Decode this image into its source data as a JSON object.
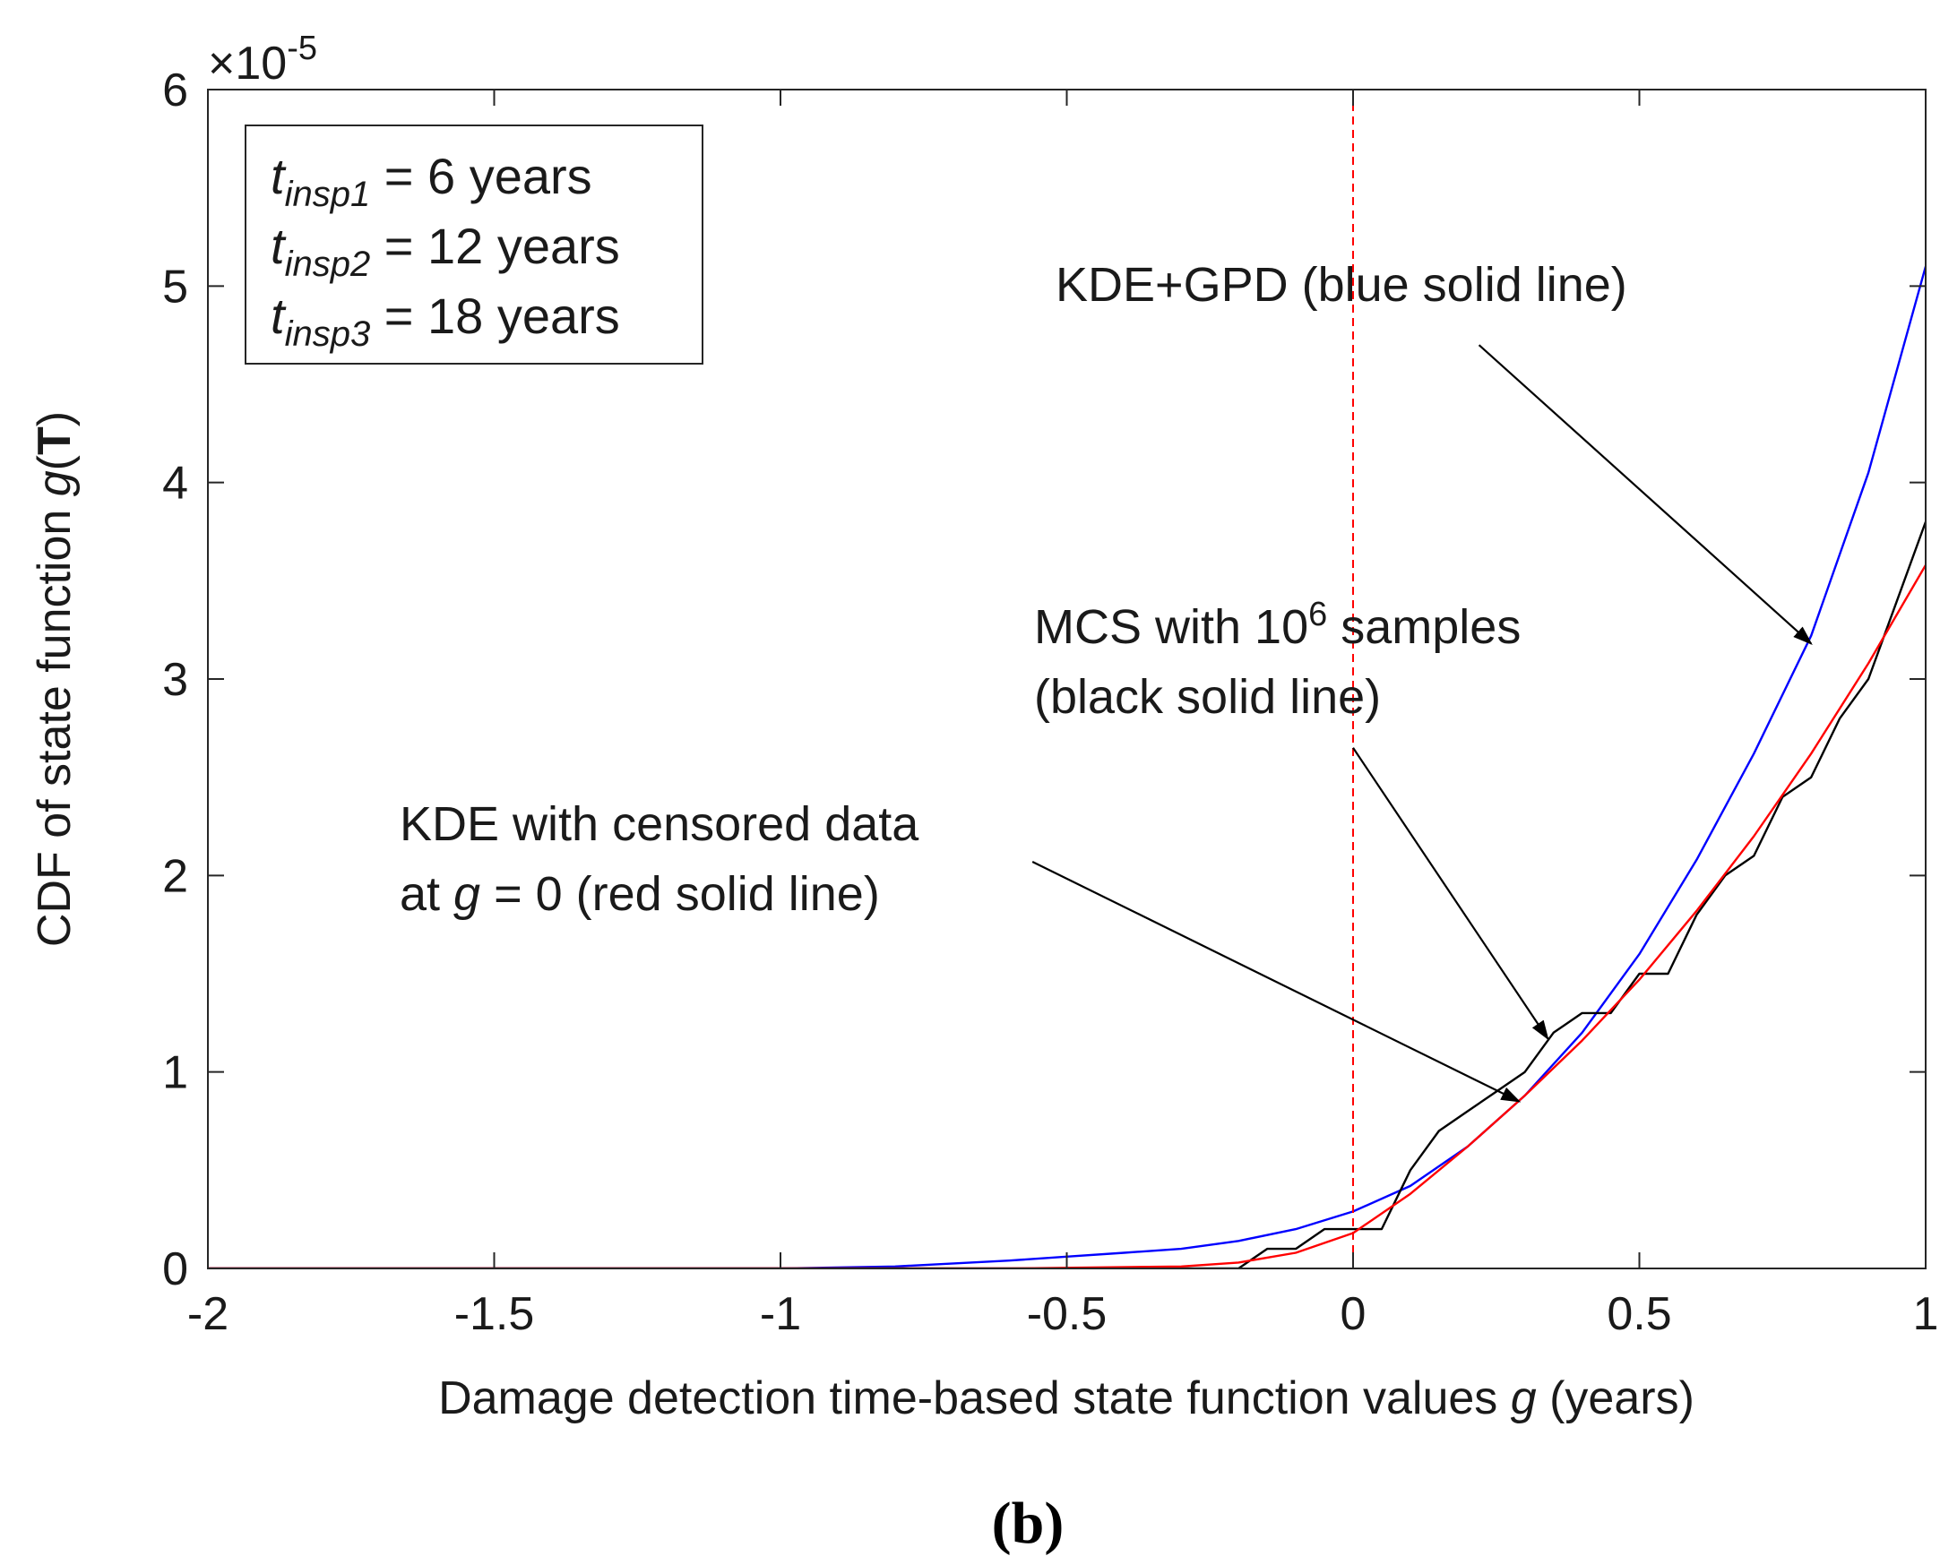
{
  "chart_data": {
    "type": "line",
    "title": "",
    "caption": "(b)",
    "xlabel": {
      "prefix": "Damage detection time-based state function values ",
      "var": "g",
      "suffix": " (years)"
    },
    "ylabel": {
      "prefix": "CDF of state function ",
      "var": "g",
      "open": "(",
      "bold": "T",
      "close": ")"
    },
    "y_exponent": {
      "base": "×10",
      "power": "-5"
    },
    "xlim": [
      -2,
      1
    ],
    "ylim": [
      0,
      6
    ],
    "xticks": [
      {
        "value": -2,
        "label": "-2"
      },
      {
        "value": -1.5,
        "label": "-1.5"
      },
      {
        "value": -1,
        "label": "-1"
      },
      {
        "value": -0.5,
        "label": "-0.5"
      },
      {
        "value": 0,
        "label": "0"
      },
      {
        "value": 0.5,
        "label": "0.5"
      },
      {
        "value": 1,
        "label": "1"
      }
    ],
    "yticks": [
      {
        "value": 0,
        "label": "0"
      },
      {
        "value": 1,
        "label": "1"
      },
      {
        "value": 2,
        "label": "2"
      },
      {
        "value": 3,
        "label": "3"
      },
      {
        "value": 4,
        "label": "4"
      },
      {
        "value": 5,
        "label": "5"
      },
      {
        "value": 6,
        "label": "6"
      }
    ],
    "reference_line": {
      "x": 0,
      "color": "#ff0000",
      "style": "dashed"
    },
    "series": [
      {
        "name": "KDE+GPD",
        "color": "#0000ff",
        "x": [
          -2,
          -1.5,
          -1,
          -0.8,
          -0.6,
          -0.5,
          -0.4,
          -0.3,
          -0.2,
          -0.1,
          0,
          0.1,
          0.2,
          0.3,
          0.4,
          0.5,
          0.6,
          0.7,
          0.8,
          0.9,
          1
        ],
        "values": [
          0,
          0,
          0,
          0.01,
          0.04,
          0.06,
          0.08,
          0.1,
          0.14,
          0.2,
          0.29,
          0.42,
          0.62,
          0.88,
          1.2,
          1.6,
          2.08,
          2.62,
          3.22,
          4.05,
          5.1
        ]
      },
      {
        "name": "MCS with 10^6 samples",
        "color": "#000000",
        "x": [
          -2,
          -0.2,
          -0.15,
          -0.1,
          -0.05,
          0,
          0.05,
          0.1,
          0.15,
          0.2,
          0.25,
          0.3,
          0.35,
          0.4,
          0.45,
          0.5,
          0.55,
          0.6,
          0.65,
          0.7,
          0.75,
          0.8,
          0.85,
          0.9,
          0.95,
          1
        ],
        "values": [
          0,
          0,
          0.1,
          0.1,
          0.2,
          0.2,
          0.2,
          0.5,
          0.7,
          0.8,
          0.9,
          1.0,
          1.2,
          1.3,
          1.3,
          1.5,
          1.5,
          1.8,
          2.0,
          2.1,
          2.4,
          2.5,
          2.8,
          3.0,
          3.4,
          3.8
        ]
      },
      {
        "name": "KDE with censored data at g = 0",
        "color": "#ff0000",
        "x": [
          -2,
          -0.6,
          -0.3,
          -0.2,
          -0.1,
          0,
          0.1,
          0.2,
          0.3,
          0.4,
          0.5,
          0.6,
          0.7,
          0.8,
          0.9,
          1
        ],
        "values": [
          0,
          0,
          0.01,
          0.03,
          0.08,
          0.18,
          0.38,
          0.62,
          0.88,
          1.16,
          1.47,
          1.82,
          2.2,
          2.62,
          3.08,
          3.58
        ]
      }
    ],
    "legend_box": [
      {
        "t": "t",
        "sub": "insp1",
        "rest": " = 6 years"
      },
      {
        "t": "t",
        "sub": "insp2",
        "rest": " = 12 years"
      },
      {
        "t": "t",
        "sub": "insp3",
        "rest": " = 18 years"
      }
    ],
    "annotations": [
      {
        "id": "kde-gpd",
        "lines": [
          "KDE+GPD (blue solid line)"
        ],
        "arrow_from": [
          0.22,
          4.7
        ],
        "arrow_to": [
          0.8,
          3.18
        ]
      },
      {
        "id": "mcs",
        "line1": {
          "pre": "MCS with 10",
          "sup": "6",
          "post": " samples"
        },
        "line2": "(black solid line)",
        "arrow_from": [
          0.0,
          2.65
        ],
        "arrow_to": [
          0.34,
          1.17
        ]
      },
      {
        "id": "kde-censored",
        "line1": "KDE with censored data",
        "line2": {
          "pre": "at ",
          "var": "g",
          "post": " = 0 (red solid line)"
        },
        "arrow_from": [
          -0.56,
          2.07
        ],
        "arrow_to": [
          0.29,
          0.85
        ]
      }
    ]
  }
}
